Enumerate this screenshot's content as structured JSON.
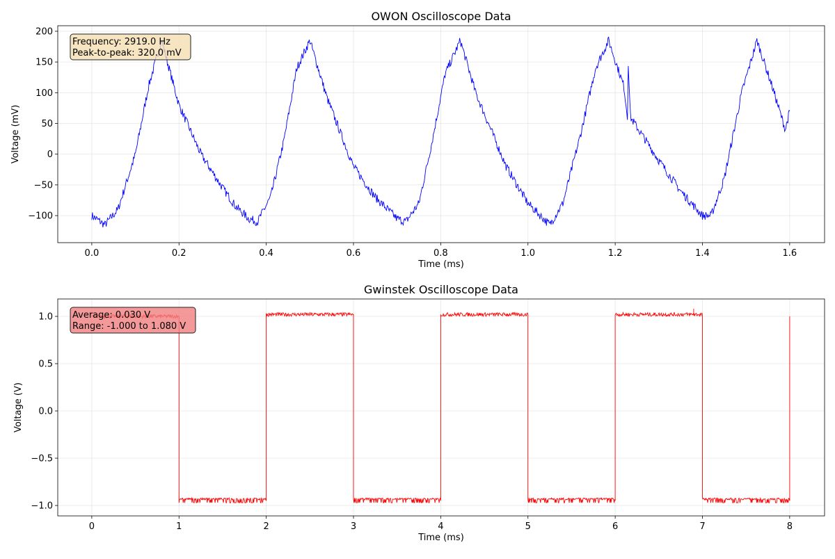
{
  "chart_data": [
    {
      "type": "line",
      "title": "OWON Oscilloscope Data",
      "xlabel": "Time (ms)",
      "ylabel": "Voltage (mV)",
      "xlim": [
        -0.078,
        1.68
      ],
      "ylim": [
        -144,
        209
      ],
      "xticks": [
        0.0,
        0.2,
        0.4,
        0.6,
        0.8,
        1.0,
        1.2,
        1.4,
        1.6
      ],
      "xtick_labels": [
        "0.0",
        "0.2",
        "0.4",
        "0.6",
        "0.8",
        "1.0",
        "1.2",
        "1.4",
        "1.6"
      ],
      "yticks": [
        -100,
        -50,
        0,
        50,
        100,
        150,
        200
      ],
      "ytick_labels": [
        "−100",
        "−50",
        "0",
        "50",
        "100",
        "150",
        "200"
      ],
      "grid": true,
      "color": "#0000ff",
      "annotation": [
        "Frequency: 2919.0 Hz",
        "Peak-to-peak: 320.0 mV"
      ],
      "annotation_color": "#f5deb3",
      "x": [
        0.0,
        0.03,
        0.06,
        0.1,
        0.13,
        0.16,
        0.2,
        0.25,
        0.3,
        0.33,
        0.36,
        0.38,
        0.41,
        0.44,
        0.47,
        0.5,
        0.54,
        0.6,
        0.65,
        0.7,
        0.72,
        0.75,
        0.78,
        0.81,
        0.845,
        0.88,
        0.95,
        1.0,
        1.05,
        1.08,
        1.12,
        1.155,
        1.185,
        1.22,
        1.228,
        1.23,
        1.235,
        1.3,
        1.35,
        1.4,
        1.42,
        1.45,
        1.49,
        1.525,
        1.56,
        1.59,
        1.6
      ],
      "y": [
        -100,
        -115,
        -90,
        0,
        110,
        185,
        80,
        0,
        -55,
        -85,
        -105,
        -110,
        -70,
        20,
        140,
        185,
        90,
        -20,
        -70,
        -105,
        -110,
        -80,
        20,
        130,
        185,
        100,
        -20,
        -80,
        -115,
        -80,
        30,
        140,
        185,
        110,
        60,
        150,
        60,
        -10,
        -60,
        -100,
        -100,
        -40,
        100,
        185,
        110,
        40,
        70
      ]
    },
    {
      "type": "line",
      "title": "Gwinstek Oscilloscope Data",
      "xlabel": "Time (ms)",
      "ylabel": "Voltage (V)",
      "xlim": [
        -0.39,
        8.4
      ],
      "ylim": [
        -1.11,
        1.184
      ],
      "xticks": [
        0,
        1,
        2,
        3,
        4,
        5,
        6,
        7,
        8
      ],
      "xtick_labels": [
        "0",
        "1",
        "2",
        "3",
        "4",
        "5",
        "6",
        "7",
        "8"
      ],
      "yticks": [
        -1.0,
        -0.5,
        0.0,
        0.5,
        1.0
      ],
      "ytick_labels": [
        "−1.0",
        "−0.5",
        "0.0",
        "0.5",
        "1.0"
      ],
      "grid": true,
      "color": "#ff0000",
      "annotation": [
        "Average: 0.030 V",
        "Range: -1.000 to 1.080 V"
      ],
      "annotation_color": "#f08080",
      "x": [
        0,
        1,
        1,
        2,
        2,
        3,
        3,
        4,
        4,
        5,
        5,
        6,
        6,
        6.9,
        6.9,
        6.9,
        7,
        7,
        8,
        8
      ],
      "y": [
        1.0,
        1.0,
        -0.95,
        -0.95,
        1.02,
        1.02,
        -0.95,
        -0.95,
        1.02,
        1.02,
        -0.95,
        -0.95,
        1.02,
        1.02,
        1.08,
        1.02,
        1.02,
        -0.95,
        -0.95,
        1.0
      ]
    }
  ]
}
